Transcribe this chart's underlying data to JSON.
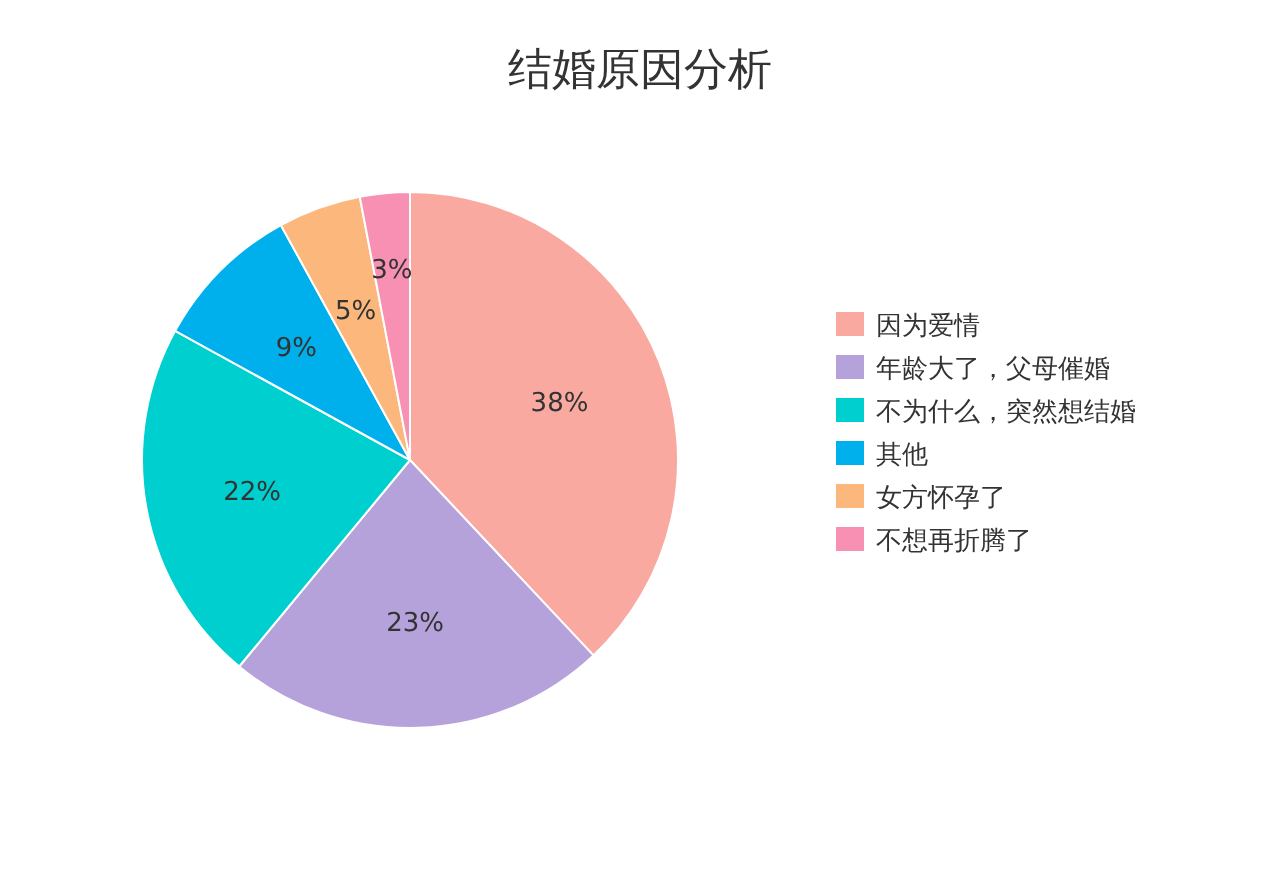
{
  "chart_data": {
    "type": "pie",
    "title": "结婚原因分析",
    "categories": [
      "因为爱情",
      "年龄大了，父母催婚",
      "不为什么，突然想结婚",
      "其他",
      "女方怀孕了",
      "不想再折腾了"
    ],
    "values": [
      38,
      23,
      22,
      9,
      5,
      3
    ],
    "colors": [
      "#f9a9a0",
      "#b5a2da",
      "#00cfd0",
      "#00b0ec",
      "#fcb87c",
      "#f890b4"
    ],
    "value_labels": [
      "38%",
      "23%",
      "22%",
      "9%",
      "5%",
      "3%"
    ],
    "legend": "right"
  }
}
